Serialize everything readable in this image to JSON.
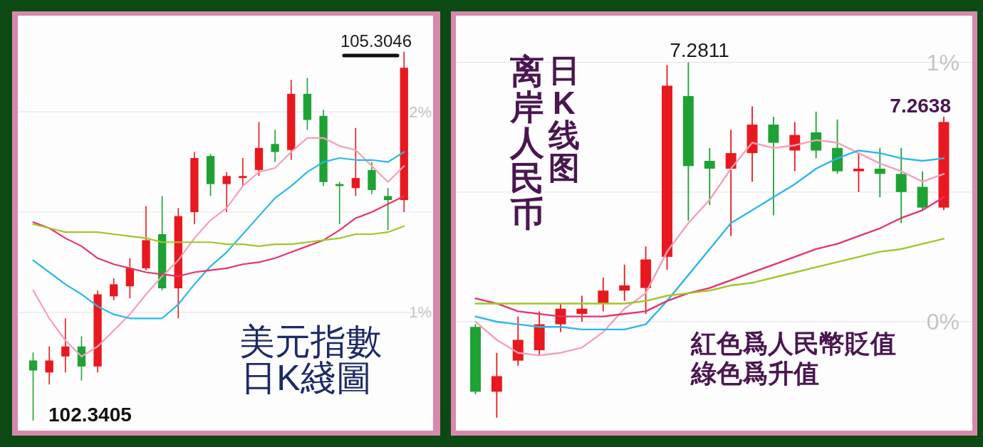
{
  "chart_data": [
    {
      "type": "candlestick",
      "title": "美元指數",
      "subtitle": "日K綫圖",
      "categories": [
        null,
        null,
        null,
        null,
        null,
        null,
        null,
        null,
        null,
        null,
        null,
        null,
        null,
        null,
        null,
        null,
        null,
        null,
        null,
        null,
        null,
        null,
        null,
        null
      ],
      "ohlc": [
        [
          0.76,
          0.8,
          0.46,
          0.71
        ],
        [
          0.7,
          0.83,
          0.64,
          0.76
        ],
        [
          0.78,
          0.97,
          0.7,
          0.83
        ],
        [
          0.83,
          0.88,
          0.66,
          0.73
        ],
        [
          0.73,
          1.11,
          0.7,
          1.09
        ],
        [
          1.08,
          1.17,
          1.06,
          1.14
        ],
        [
          1.13,
          1.27,
          1.07,
          1.22
        ],
        [
          1.22,
          1.53,
          1.21,
          1.36
        ],
        [
          1.39,
          1.58,
          1.11,
          1.12
        ],
        [
          1.12,
          1.52,
          0.97,
          1.48
        ],
        [
          1.5,
          1.8,
          1.44,
          1.77
        ],
        [
          1.78,
          1.79,
          1.58,
          1.64
        ],
        [
          1.64,
          1.7,
          1.5,
          1.68
        ],
        [
          1.67,
          1.77,
          1.63,
          1.68
        ],
        [
          1.71,
          1.95,
          1.68,
          1.82
        ],
        [
          1.84,
          1.91,
          1.75,
          1.8
        ],
        [
          1.81,
          2.16,
          1.76,
          2.09
        ],
        [
          2.09,
          2.17,
          1.91,
          1.96
        ],
        [
          1.98,
          2.01,
          1.63,
          1.65
        ],
        [
          1.64,
          1.65,
          1.44,
          1.63
        ],
        [
          1.62,
          1.92,
          1.58,
          1.67
        ],
        [
          1.71,
          1.75,
          1.59,
          1.61
        ],
        [
          1.58,
          1.62,
          1.41,
          1.56
        ],
        [
          1.56,
          2.3,
          1.5,
          2.22
        ]
      ],
      "colors": [
        "#1ea234",
        "#e8191e",
        "#e8191e",
        "#1ea234",
        "#e8191e",
        "#e8191e",
        "#e8191e",
        "#e8191e",
        "#1ea234",
        "#e8191e",
        "#e8191e",
        "#1ea234",
        "#e8191e",
        "#e8191e",
        "#e8191e",
        "#1ea234",
        "#e8191e",
        "#1ea234",
        "#1ea234",
        "#1ea234",
        "#e8191e",
        "#1ea234",
        "#1ea234",
        "#e8191e"
      ],
      "series": [
        {
          "type": "line",
          "color": "#f4a0b8",
          "values": [
            1.11,
            0.97,
            0.86,
            0.78,
            0.83,
            0.91,
            0.99,
            1.09,
            1.18,
            1.26,
            1.37,
            1.46,
            1.52,
            1.63,
            1.7,
            1.72,
            1.8,
            1.87,
            1.87,
            1.83,
            1.81,
            1.73,
            1.65,
            1.73
          ]
        },
        {
          "type": "line",
          "color": "#2bb8e8",
          "values": [
            1.26,
            1.2,
            1.14,
            1.09,
            1.03,
            0.99,
            0.97,
            0.97,
            0.97,
            1.04,
            1.14,
            1.23,
            1.3,
            1.39,
            1.48,
            1.57,
            1.63,
            1.7,
            1.75,
            1.77,
            1.76,
            1.76,
            1.75,
            1.8
          ]
        },
        {
          "type": "line",
          "color": "#e6336f",
          "values": [
            1.45,
            1.42,
            1.37,
            1.33,
            1.27,
            1.24,
            1.22,
            1.2,
            1.19,
            1.18,
            1.2,
            1.21,
            1.22,
            1.24,
            1.25,
            1.27,
            1.3,
            1.33,
            1.36,
            1.41,
            1.47,
            1.5,
            1.54,
            1.58
          ]
        },
        {
          "type": "line",
          "color": "#a0c72a",
          "values": [
            1.44,
            1.42,
            1.4,
            1.4,
            1.4,
            1.39,
            1.38,
            1.37,
            1.35,
            1.35,
            1.35,
            1.35,
            1.34,
            1.34,
            1.33,
            1.34,
            1.34,
            1.35,
            1.36,
            1.37,
            1.39,
            1.39,
            1.4,
            1.43
          ]
        }
      ],
      "ylim": [
        0.41,
        2.48
      ],
      "yticks": [
        {
          "value": 1,
          "label": "1%"
        },
        {
          "value": 1.5,
          "label": null
        },
        {
          "value": 2,
          "label": "2%"
        }
      ],
      "tick_labels": "y",
      "grid": true,
      "annotations": [
        "105.3046",
        "102.3405"
      ]
    },
    {
      "type": "candlestick",
      "title": "离岸人民币",
      "subtitle": "日K线图",
      "categories": [
        null,
        null,
        null,
        null,
        null,
        null,
        null,
        null,
        null,
        null,
        null,
        null,
        null,
        null,
        null,
        null,
        null,
        null,
        null,
        null,
        null,
        null,
        null
      ],
      "ohlc": [
        [
          -0.02,
          -0.01,
          -0.28,
          -0.27
        ],
        [
          -0.27,
          -0.12,
          -0.37,
          -0.21
        ],
        [
          -0.15,
          0.02,
          -0.17,
          -0.07
        ],
        [
          -0.11,
          0.04,
          -0.13,
          -0.01
        ],
        [
          -0.01,
          0.07,
          -0.04,
          0.05
        ],
        [
          0.03,
          0.1,
          0.0,
          0.05
        ],
        [
          0.07,
          0.17,
          0.04,
          0.12
        ],
        [
          0.12,
          0.22,
          0.08,
          0.14
        ],
        [
          0.13,
          0.29,
          0.03,
          0.24
        ],
        [
          0.25,
          0.99,
          0.2,
          0.91
        ],
        [
          0.87,
          1.0,
          0.39,
          0.6
        ],
        [
          0.62,
          0.67,
          0.45,
          0.59
        ],
        [
          0.59,
          0.74,
          0.33,
          0.65
        ],
        [
          0.65,
          0.83,
          0.54,
          0.76
        ],
        [
          0.76,
          0.79,
          0.41,
          0.69
        ],
        [
          0.66,
          0.77,
          0.58,
          0.72
        ],
        [
          0.73,
          0.81,
          0.63,
          0.66
        ],
        [
          0.67,
          0.78,
          0.57,
          0.58
        ],
        [
          0.58,
          0.65,
          0.5,
          0.59
        ],
        [
          0.59,
          0.67,
          0.48,
          0.57
        ],
        [
          0.57,
          0.67,
          0.38,
          0.5
        ],
        [
          0.52,
          0.58,
          0.43,
          0.44
        ],
        [
          0.44,
          0.79,
          0.43,
          0.77
        ]
      ],
      "colors": [
        "#1ea234",
        "#e8191e",
        "#e8191e",
        "#e8191e",
        "#e8191e",
        "#e8191e",
        "#e8191e",
        "#e8191e",
        "#e8191e",
        "#e8191e",
        "#1ea234",
        "#1ea234",
        "#e8191e",
        "#e8191e",
        "#1ea234",
        "#e8191e",
        "#1ea234",
        "#1ea234",
        "#e8191e",
        "#1ea234",
        "#1ea234",
        "#1ea234",
        "#e8191e"
      ],
      "series": [
        {
          "type": "line",
          "color": "#f4a0b8",
          "values": [
            0.0,
            -0.07,
            -0.12,
            -0.13,
            -0.12,
            -0.1,
            -0.04,
            0.05,
            0.11,
            0.27,
            0.38,
            0.47,
            0.59,
            0.69,
            0.67,
            0.68,
            0.7,
            0.69,
            0.65,
            0.61,
            0.58,
            0.54,
            0.57
          ]
        },
        {
          "type": "line",
          "color": "#2bb8e8",
          "values": [
            0.02,
            0.0,
            -0.01,
            -0.02,
            -0.02,
            -0.03,
            -0.03,
            -0.03,
            -0.01,
            0.08,
            0.18,
            0.28,
            0.38,
            0.43,
            0.48,
            0.53,
            0.59,
            0.63,
            0.66,
            0.65,
            0.63,
            0.62,
            0.63
          ]
        },
        {
          "type": "line",
          "color": "#e6336f",
          "values": [
            0.09,
            0.07,
            0.04,
            0.03,
            0.02,
            0.02,
            0.02,
            0.03,
            0.04,
            0.08,
            0.11,
            0.13,
            0.16,
            0.19,
            0.22,
            0.25,
            0.28,
            0.3,
            0.33,
            0.36,
            0.4,
            0.43,
            0.48
          ]
        },
        {
          "type": "line",
          "color": "#a0c72a",
          "values": [
            0.07,
            0.07,
            0.07,
            0.07,
            0.07,
            0.07,
            0.07,
            0.07,
            0.08,
            0.1,
            0.11,
            0.12,
            0.14,
            0.15,
            0.17,
            0.19,
            0.21,
            0.23,
            0.25,
            0.27,
            0.28,
            0.3,
            0.32
          ]
        }
      ],
      "ylim": [
        -0.42,
        1.18
      ],
      "yticks": [
        {
          "value": 0,
          "label": "0%"
        },
        {
          "value": 0.5,
          "label": null
        },
        {
          "value": 1,
          "label": "1%"
        }
      ],
      "tick_labels": "y",
      "grid": true,
      "annotations": [
        "7.2811",
        "7.2638",
        "紅色爲人民幣貶值",
        "綠色爲升值"
      ]
    }
  ]
}
